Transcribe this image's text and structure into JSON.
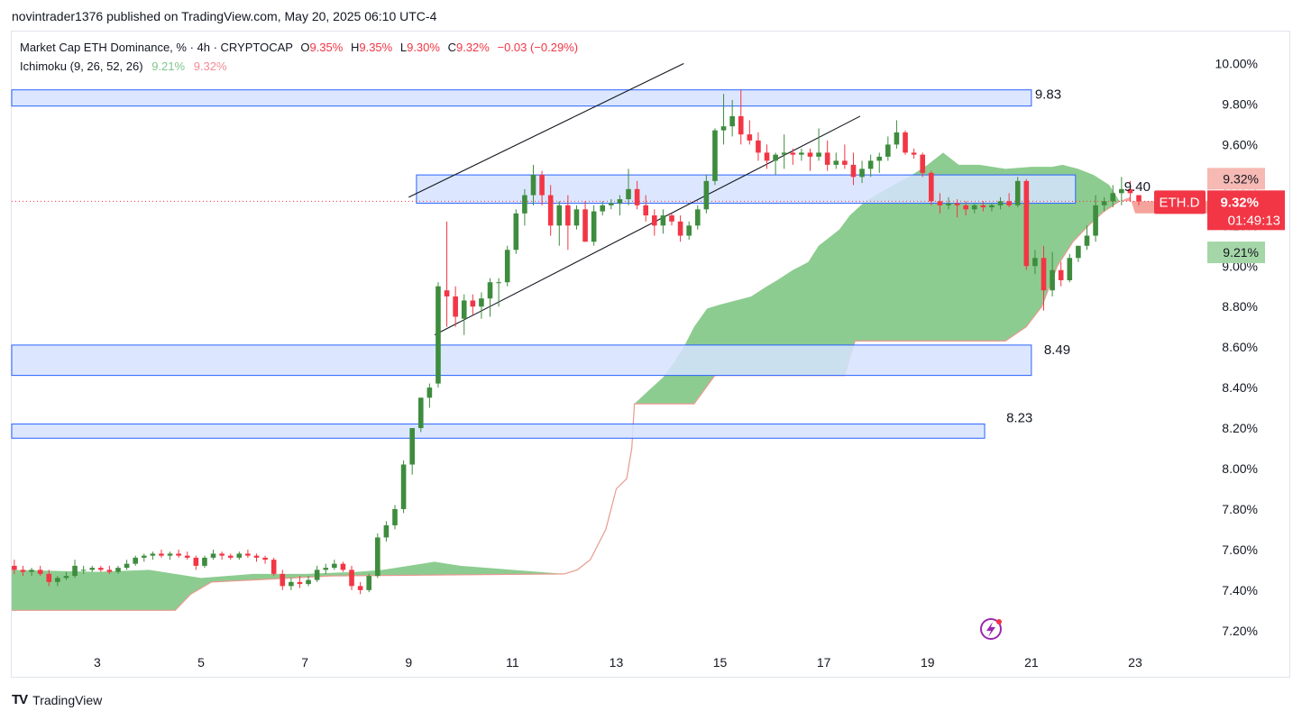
{
  "header": {
    "published_line": "novintrader1376 published on TradingView.com, May 20, 2025 06:10 UTC-4"
  },
  "legend": {
    "symbol": "Market Cap ETH Dominance, % · 4h · CRYPTOCAP",
    "o_label": "O",
    "o_value": "9.35%",
    "h_label": "H",
    "h_value": "9.35%",
    "l_label": "L",
    "l_value": "9.30%",
    "c_label": "C",
    "c_value": "9.32%",
    "change": "−0.03 (−0.29%)",
    "indicator": "Ichimoku (9, 26, 52, 26)",
    "ind_val1": "9.21%",
    "ind_val2": "9.32%"
  },
  "footer": {
    "brand": "TradingView",
    "logo": "TV"
  },
  "colors": {
    "up": "#3e8c3e",
    "down": "#f23645",
    "cloud_green": "#81c784",
    "cloud_red": "#f4a49c",
    "zone_fill": "#d6e3ff",
    "zone_border": "#2962ff"
  },
  "chart_data": {
    "type": "candlestick",
    "ylim": [
      7.0,
      10.1
    ],
    "y_ticks": [
      "7.20%",
      "7.40%",
      "7.60%",
      "7.80%",
      "8.00%",
      "8.20%",
      "8.40%",
      "8.60%",
      "8.80%",
      "9.00%",
      "9.20%",
      "9.40%",
      "9.60%",
      "9.80%",
      "10.00%"
    ],
    "y_tick_values": [
      7.2,
      7.4,
      7.6,
      7.8,
      8.0,
      8.2,
      8.4,
      8.6,
      8.8,
      9.0,
      9.2,
      9.4,
      9.6,
      9.8,
      10.0
    ],
    "x_ticks": [
      "3",
      "5",
      "7",
      "9",
      "11",
      "13",
      "15",
      "17",
      "19",
      "21",
      "23"
    ],
    "x_tick_days": [
      3,
      5,
      7,
      9,
      11,
      13,
      15,
      17,
      19,
      21,
      23
    ],
    "x_range_days": [
      1.35,
      25.6
    ],
    "price_tag": {
      "symbol": "ETH.D",
      "value": "9.32%",
      "countdown": "01:49:13",
      "y": 9.32
    },
    "span_a_tag": {
      "value": "9.32%",
      "y": 9.32
    },
    "span_b_tag": {
      "value": "9.21%",
      "y": 9.21
    },
    "zones": [
      {
        "label": "9.83",
        "y_top": 9.87,
        "y_bottom": 9.79,
        "day_start": 1.35,
        "day_end": 21.0
      },
      {
        "label": "9.40",
        "y_top": 9.45,
        "y_bottom": 9.31,
        "day_start": 9.15,
        "day_end": 21.85
      },
      {
        "label": "8.49",
        "y_top": 8.61,
        "y_bottom": 8.46,
        "day_start": 1.35,
        "day_end": 21.0
      },
      {
        "label": "8.23",
        "y_top": 8.22,
        "y_bottom": 8.15,
        "day_start": 1.35,
        "day_end": 20.1
      }
    ],
    "channel_lines": [
      {
        "from": [
          9.0,
          9.34
        ],
        "to": [
          14.3,
          10.0
        ]
      },
      {
        "from": [
          9.5,
          8.66
        ],
        "to": [
          17.7,
          9.74
        ]
      }
    ],
    "candles": {
      "day_start": 1.35,
      "step_days": 0.1667,
      "ohlc": [
        [
          7.52,
          7.55,
          7.48,
          7.5
        ],
        [
          7.5,
          7.52,
          7.47,
          7.49
        ],
        [
          7.49,
          7.51,
          7.47,
          7.5
        ],
        [
          7.5,
          7.52,
          7.47,
          7.48
        ],
        [
          7.48,
          7.5,
          7.42,
          7.44
        ],
        [
          7.44,
          7.47,
          7.42,
          7.46
        ],
        [
          7.46,
          7.49,
          7.45,
          7.47
        ],
        [
          7.47,
          7.55,
          7.46,
          7.52
        ],
        [
          7.5,
          7.52,
          7.48,
          7.5
        ],
        [
          7.5,
          7.52,
          7.49,
          7.51
        ],
        [
          7.51,
          7.52,
          7.49,
          7.5
        ],
        [
          7.5,
          7.52,
          7.48,
          7.49
        ],
        [
          7.49,
          7.52,
          7.48,
          7.51
        ],
        [
          7.51,
          7.55,
          7.5,
          7.53
        ],
        [
          7.53,
          7.57,
          7.52,
          7.56
        ],
        [
          7.56,
          7.58,
          7.54,
          7.57
        ],
        [
          7.57,
          7.59,
          7.55,
          7.58
        ],
        [
          7.58,
          7.6,
          7.56,
          7.57
        ],
        [
          7.57,
          7.59,
          7.55,
          7.58
        ],
        [
          7.58,
          7.6,
          7.56,
          7.57
        ],
        [
          7.57,
          7.59,
          7.55,
          7.56
        ],
        [
          7.56,
          7.57,
          7.5,
          7.52
        ],
        [
          7.52,
          7.57,
          7.51,
          7.56
        ],
        [
          7.56,
          7.6,
          7.55,
          7.58
        ],
        [
          7.58,
          7.59,
          7.55,
          7.57
        ],
        [
          7.57,
          7.58,
          7.55,
          7.56
        ],
        [
          7.56,
          7.59,
          7.55,
          7.58
        ],
        [
          7.58,
          7.6,
          7.56,
          7.57
        ],
        [
          7.57,
          7.58,
          7.54,
          7.56
        ],
        [
          7.56,
          7.57,
          7.53,
          7.55
        ],
        [
          7.55,
          7.56,
          7.47,
          7.48
        ],
        [
          7.48,
          7.5,
          7.4,
          7.42
        ],
        [
          7.42,
          7.46,
          7.4,
          7.44
        ],
        [
          7.44,
          7.47,
          7.41,
          7.43
        ],
        [
          7.43,
          7.47,
          7.42,
          7.45
        ],
        [
          7.45,
          7.52,
          7.44,
          7.5
        ],
        [
          7.5,
          7.53,
          7.48,
          7.51
        ],
        [
          7.51,
          7.55,
          7.5,
          7.53
        ],
        [
          7.53,
          7.54,
          7.49,
          7.5
        ],
        [
          7.5,
          7.52,
          7.4,
          7.42
        ],
        [
          7.42,
          7.44,
          7.38,
          7.4
        ],
        [
          7.4,
          7.48,
          7.39,
          7.47
        ],
        [
          7.47,
          7.68,
          7.46,
          7.66
        ],
        [
          7.66,
          7.74,
          7.64,
          7.72
        ],
        [
          7.72,
          7.82,
          7.7,
          7.8
        ],
        [
          7.8,
          8.04,
          7.78,
          8.02
        ],
        [
          8.02,
          8.2,
          7.97,
          8.2
        ],
        [
          8.2,
          8.35,
          8.18,
          8.35
        ],
        [
          8.35,
          8.42,
          8.3,
          8.4
        ],
        [
          8.42,
          8.92,
          8.4,
          8.9
        ],
        [
          8.88,
          9.22,
          8.7,
          8.85
        ],
        [
          8.85,
          8.9,
          8.7,
          8.75
        ],
        [
          8.74,
          8.86,
          8.66,
          8.83
        ],
        [
          8.83,
          8.86,
          8.76,
          8.8
        ],
        [
          8.8,
          8.87,
          8.74,
          8.84
        ],
        [
          8.84,
          8.94,
          8.75,
          8.92
        ],
        [
          8.92,
          8.94,
          8.8,
          8.92
        ],
        [
          8.92,
          9.1,
          8.9,
          9.08
        ],
        [
          9.08,
          9.28,
          9.06,
          9.26
        ],
        [
          9.26,
          9.38,
          9.2,
          9.35
        ],
        [
          9.35,
          9.5,
          9.3,
          9.45
        ],
        [
          9.45,
          9.47,
          9.3,
          9.35
        ],
        [
          9.35,
          9.4,
          9.15,
          9.2
        ],
        [
          9.2,
          9.32,
          9.1,
          9.3
        ],
        [
          9.3,
          9.35,
          9.08,
          9.2
        ],
        [
          9.2,
          9.3,
          9.18,
          9.28
        ],
        [
          9.28,
          9.32,
          9.12,
          9.12
        ],
        [
          9.12,
          9.3,
          9.1,
          9.27
        ],
        [
          9.27,
          9.32,
          9.25,
          9.3
        ],
        [
          9.3,
          9.33,
          9.28,
          9.31
        ],
        [
          9.31,
          9.35,
          9.25,
          9.33
        ],
        [
          9.33,
          9.48,
          9.3,
          9.38
        ],
        [
          9.38,
          9.42,
          9.28,
          9.3
        ],
        [
          9.3,
          9.35,
          9.22,
          9.25
        ],
        [
          9.25,
          9.28,
          9.15,
          9.2
        ],
        [
          9.2,
          9.28,
          9.16,
          9.25
        ],
        [
          9.25,
          9.26,
          9.2,
          9.22
        ],
        [
          9.22,
          9.25,
          9.12,
          9.15
        ],
        [
          9.15,
          9.22,
          9.13,
          9.2
        ],
        [
          9.2,
          9.3,
          9.18,
          9.28
        ],
        [
          9.28,
          9.45,
          9.26,
          9.42
        ],
        [
          9.42,
          9.68,
          9.4,
          9.67
        ],
        [
          9.67,
          9.85,
          9.6,
          9.69
        ],
        [
          9.69,
          9.82,
          9.64,
          9.74
        ],
        [
          9.74,
          9.87,
          9.6,
          9.65
        ],
        [
          9.65,
          9.72,
          9.6,
          9.62
        ],
        [
          9.62,
          9.66,
          9.52,
          9.56
        ],
        [
          9.56,
          9.6,
          9.48,
          9.52
        ],
        [
          9.52,
          9.56,
          9.45,
          9.55
        ],
        [
          9.55,
          9.65,
          9.48,
          9.56
        ],
        [
          9.56,
          9.58,
          9.5,
          9.55
        ],
        [
          9.55,
          9.58,
          9.52,
          9.56
        ],
        [
          9.56,
          9.58,
          9.47,
          9.54
        ],
        [
          9.54,
          9.68,
          9.52,
          9.56
        ],
        [
          9.56,
          9.62,
          9.47,
          9.5
        ],
        [
          9.5,
          9.56,
          9.48,
          9.52
        ],
        [
          9.52,
          9.6,
          9.48,
          9.5
        ],
        [
          9.5,
          9.56,
          9.4,
          9.44
        ],
        [
          9.44,
          9.52,
          9.41,
          9.48
        ],
        [
          9.48,
          9.55,
          9.44,
          9.52
        ],
        [
          9.52,
          9.56,
          9.46,
          9.54
        ],
        [
          9.54,
          9.64,
          9.52,
          9.6
        ],
        [
          9.6,
          9.72,
          9.58,
          9.66
        ],
        [
          9.66,
          9.67,
          9.55,
          9.56
        ],
        [
          9.56,
          9.58,
          9.53,
          9.55
        ],
        [
          9.55,
          9.56,
          9.44,
          9.46
        ],
        [
          9.46,
          9.47,
          9.3,
          9.32
        ],
        [
          9.32,
          9.36,
          9.26,
          9.3
        ],
        [
          9.3,
          9.34,
          9.28,
          9.31
        ],
        [
          9.31,
          9.33,
          9.24,
          9.3
        ],
        [
          9.3,
          9.32,
          9.25,
          9.28
        ],
        [
          9.28,
          9.31,
          9.26,
          9.3
        ],
        [
          9.3,
          9.32,
          9.27,
          9.29
        ],
        [
          9.29,
          9.31,
          9.27,
          9.3
        ],
        [
          9.3,
          9.34,
          9.28,
          9.32
        ],
        [
          9.32,
          9.36,
          9.29,
          9.3
        ],
        [
          9.3,
          9.44,
          9.29,
          9.42
        ],
        [
          9.42,
          9.43,
          8.98,
          9.0
        ],
        [
          9.0,
          9.08,
          8.96,
          9.04
        ],
        [
          9.04,
          9.1,
          8.78,
          8.88
        ],
        [
          8.88,
          9.07,
          8.85,
          8.98
        ],
        [
          8.98,
          9.02,
          8.9,
          8.93
        ],
        [
          8.93,
          9.06,
          8.92,
          9.04
        ],
        [
          9.04,
          9.1,
          9.02,
          9.1
        ],
        [
          9.1,
          9.2,
          9.08,
          9.15
        ],
        [
          9.15,
          9.35,
          9.12,
          9.3
        ],
        [
          9.3,
          9.34,
          9.27,
          9.32
        ],
        [
          9.32,
          9.4,
          9.29,
          9.36
        ],
        [
          9.36,
          9.44,
          9.3,
          9.38
        ],
        [
          9.38,
          9.42,
          9.32,
          9.36
        ],
        [
          9.35,
          9.35,
          9.3,
          9.32
        ]
      ]
    },
    "cloud": {
      "upper": [
        [
          1.35,
          7.5
        ],
        [
          3.0,
          7.49
        ],
        [
          4.0,
          7.5
        ],
        [
          5.0,
          7.46
        ],
        [
          6.0,
          7.48
        ],
        [
          7.0,
          7.48
        ],
        [
          8.0,
          7.49
        ],
        [
          8.5,
          7.5
        ],
        [
          9.0,
          7.52
        ],
        [
          9.5,
          7.54
        ],
        [
          10.0,
          7.52
        ],
        [
          11.0,
          7.5
        ],
        [
          11.5,
          7.49
        ],
        [
          12.0,
          7.48
        ],
        [
          12.25,
          7.5
        ],
        [
          12.5,
          7.55
        ],
        [
          12.8,
          7.7
        ],
        [
          13.0,
          7.9
        ],
        [
          13.2,
          7.95
        ],
        [
          13.3,
          8.1
        ],
        [
          13.35,
          8.32
        ],
        [
          13.6,
          8.38
        ],
        [
          13.9,
          8.45
        ],
        [
          14.1,
          8.52
        ],
        [
          14.3,
          8.6
        ],
        [
          14.5,
          8.7
        ],
        [
          14.75,
          8.79
        ],
        [
          15.0,
          8.81
        ],
        [
          15.3,
          8.83
        ],
        [
          15.6,
          8.85
        ],
        [
          15.9,
          8.9
        ],
        [
          16.1,
          8.93
        ],
        [
          16.4,
          8.98
        ],
        [
          16.7,
          9.02
        ],
        [
          16.9,
          9.1
        ],
        [
          17.3,
          9.18
        ],
        [
          17.5,
          9.25
        ],
        [
          17.8,
          9.32
        ],
        [
          18.2,
          9.38
        ],
        [
          18.7,
          9.45
        ],
        [
          19.0,
          9.5
        ],
        [
          19.3,
          9.56
        ],
        [
          19.6,
          9.5
        ],
        [
          20.0,
          9.5
        ],
        [
          20.5,
          9.48
        ],
        [
          21.0,
          9.49
        ],
        [
          21.4,
          9.49
        ],
        [
          21.6,
          9.5
        ],
        [
          21.9,
          9.48
        ],
        [
          22.2,
          9.45
        ],
        [
          22.5,
          9.4
        ],
        [
          22.7,
          9.32
        ]
      ],
      "lower": [
        [
          1.35,
          7.3
        ],
        [
          4.5,
          7.3
        ],
        [
          4.8,
          7.38
        ],
        [
          5.2,
          7.44
        ],
        [
          6.0,
          7.45
        ],
        [
          7.5,
          7.47
        ],
        [
          12.0,
          7.48
        ],
        [
          12.25,
          7.5
        ],
        [
          12.5,
          7.55
        ],
        [
          12.8,
          7.7
        ],
        [
          13.0,
          7.9
        ],
        [
          13.2,
          7.95
        ],
        [
          13.3,
          8.1
        ],
        [
          13.35,
          8.32
        ],
        [
          14.5,
          8.32
        ],
        [
          14.9,
          8.46
        ],
        [
          17.4,
          8.46
        ],
        [
          17.6,
          8.63
        ],
        [
          18.5,
          8.63
        ],
        [
          20.5,
          8.63
        ],
        [
          20.9,
          8.7
        ],
        [
          21.2,
          8.8
        ],
        [
          21.5,
          9.0
        ],
        [
          21.8,
          9.12
        ],
        [
          22.1,
          9.2
        ],
        [
          22.4,
          9.27
        ],
        [
          22.7,
          9.32
        ]
      ],
      "red_upper": [
        [
          22.7,
          9.32
        ],
        [
          23.0,
          9.32
        ],
        [
          24.0,
          9.32
        ],
        [
          24.9,
          9.32
        ]
      ],
      "red_lower": [
        [
          22.7,
          9.32
        ],
        [
          22.9,
          9.34
        ],
        [
          23.0,
          9.26
        ],
        [
          24.0,
          9.26
        ],
        [
          24.9,
          9.26
        ]
      ]
    }
  }
}
